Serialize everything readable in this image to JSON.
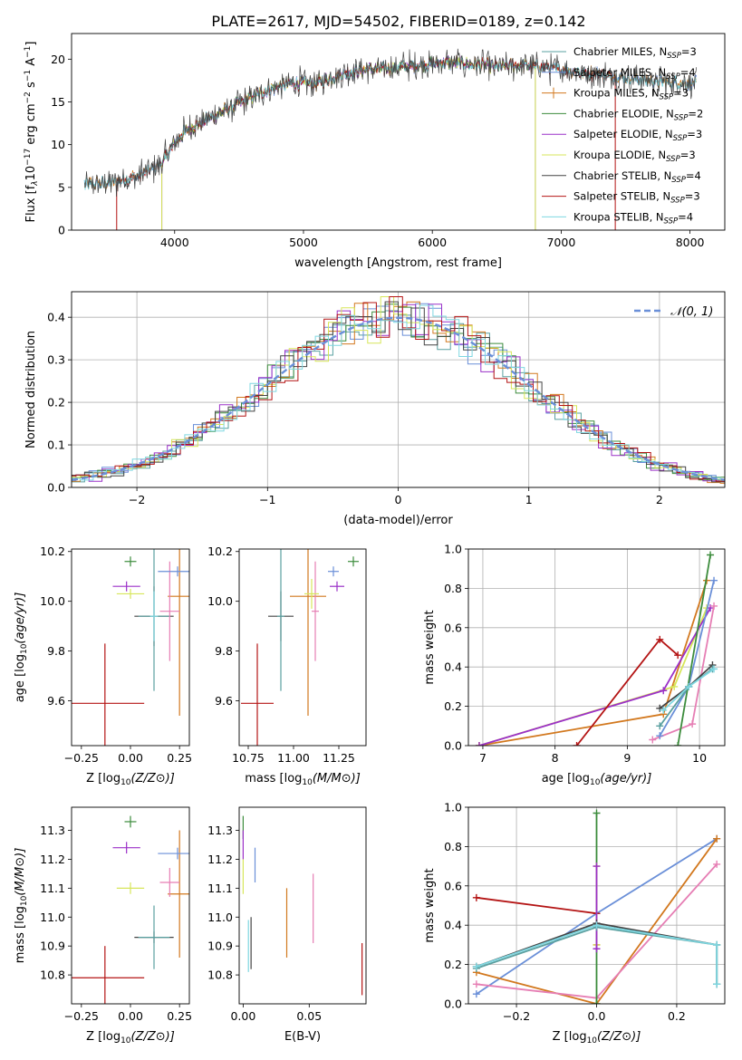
{
  "figure": {
    "title": "PLATE=2617, MJD=54502, FIBERID=0189, z=0.142"
  },
  "colors": {
    "Chabrier MILES": "#5aa0a0",
    "Salpeter MILES": "#6a8fd8",
    "Kroupa MILES": "#d2781e",
    "Chabrier ELODIE": "#3c8c3c",
    "Salpeter ELODIE": "#9b30c8",
    "Kroupa ELODIE": "#d7e65a",
    "Chabrier STELIB": "#444444",
    "Salpeter STELIB": "#b41414",
    "Kroupa STELIB": "#7ed7e1",
    "Kroupa STELIB pink": "#e67eb4",
    "normal": "#6a8fd8"
  },
  "chart_data": [
    {
      "id": "spectrum",
      "type": "line",
      "title": "PLATE=2617, MJD=54502, FIBERID=0189, z=0.142",
      "xlabel": "wavelength [Angstrom, rest frame]",
      "ylabel": "Flux [f_λ 10^-17 erg cm^-2 s^-1 A^-1]",
      "ylabel_parts": {
        "a": "Flux [f",
        "b": "λ",
        "c": "10",
        "d": "−17",
        "e": " erg cm",
        "f": "−2",
        "g": " s",
        "h": "−1",
        "i": " A",
        "j": "−1",
        "k": "]"
      },
      "xlim": [
        3200,
        8270
      ],
      "ylim": [
        0,
        23
      ],
      "xticks": [
        "4000",
        "5000",
        "6000",
        "7000",
        "8000"
      ],
      "yticks": [
        "0",
        "5",
        "10",
        "15",
        "20"
      ],
      "xtick_values": [
        4000,
        5000,
        6000,
        7000,
        8000
      ],
      "ytick_values": [
        0,
        5,
        10,
        15,
        20
      ],
      "legend_position": "top-right",
      "continuum": {
        "x": [
          3300,
          3500,
          3700,
          3900,
          4000,
          4100,
          4300,
          4500,
          4700,
          4900,
          5100,
          5300,
          5500,
          5700,
          5900,
          6100,
          6300,
          6500,
          6700,
          6900,
          7100,
          7300,
          7500,
          7700,
          7900,
          8000
        ],
        "y": [
          5.3,
          5.5,
          6.2,
          7.8,
          10.2,
          11.8,
          13.3,
          14.8,
          16.3,
          17.2,
          17.2,
          18.3,
          18.8,
          19.0,
          19.3,
          19.6,
          19.4,
          19.1,
          19.3,
          19.0,
          18.6,
          18.2,
          17.8,
          17.5,
          17.3,
          17.2
        ]
      },
      "series": [
        {
          "name": "Chabrier MILES, N_SSP=3",
          "label": "Chabrier MILES, N",
          "sub": "SSP",
          "suffix": "=3",
          "color": "#5aa0a0",
          "start": 3300,
          "end": 8050
        },
        {
          "name": "Salpeter MILES, N_SSP=4",
          "label": "Salpeter MILES, N",
          "sub": "SSP",
          "suffix": "=4",
          "color": "#6a8fd8",
          "start": 3300,
          "end": 8050
        },
        {
          "name": "Kroupa MILES, N_SSP=3",
          "label": "Kroupa MILES, N",
          "sub": "SSP",
          "suffix": "=3",
          "color": "#d2781e",
          "start": 3300,
          "end": 8050
        },
        {
          "name": "Chabrier ELODIE, N_SSP=2",
          "label": "Chabrier ELODIE, N",
          "sub": "SSP",
          "suffix": "=2",
          "color": "#3c8c3c",
          "start": 3900,
          "end": 6800
        },
        {
          "name": "Salpeter ELODIE, N_SSP=3",
          "label": "Salpeter ELODIE, N",
          "sub": "SSP",
          "suffix": "=3",
          "color": "#9b30c8",
          "start": 3900,
          "end": 6800
        },
        {
          "name": "Kroupa ELODIE, N_SSP=3",
          "label": "Kroupa ELODIE, N",
          "sub": "SSP",
          "suffix": "=3",
          "color": "#d7e65a",
          "start": 3900,
          "end": 6800
        },
        {
          "name": "Chabrier STELIB, N_SSP=4",
          "label": "Chabrier STELIB, N",
          "sub": "SSP",
          "suffix": "=4",
          "color": "#444444",
          "start": 3300,
          "end": 8050
        },
        {
          "name": "Salpeter STELIB, N_SSP=3",
          "label": "Salpeter STELIB, N",
          "sub": "SSP",
          "suffix": "=3",
          "color": "#b41414",
          "start": 3550,
          "end": 7420
        },
        {
          "name": "Kroupa STELIB, N_SSP=4",
          "label": "Kroupa STELIB, N",
          "sub": "SSP",
          "suffix": "=4",
          "color": "#7ed7e1",
          "start": 3300,
          "end": 8050
        }
      ]
    },
    {
      "id": "residuals",
      "type": "line",
      "xlabel": "(data-model)/error",
      "ylabel": "Normed distribution",
      "xlim": [
        -2.5,
        2.5
      ],
      "ylim": [
        0,
        0.46
      ],
      "xticks": [
        "−2",
        "−1",
        "0",
        "1",
        "2"
      ],
      "yticks": [
        "0.0",
        "0.1",
        "0.2",
        "0.3",
        "0.4"
      ],
      "xtick_values": [
        -2,
        -1,
        0,
        1,
        2
      ],
      "ytick_values": [
        0,
        0.1,
        0.2,
        0.3,
        0.4
      ],
      "grid": true,
      "legend_label": "𝒩(0, 1)",
      "legend_position": "top-right",
      "bin_width": 0.1,
      "hist_colors": [
        "#5aa0a0",
        "#6a8fd8",
        "#d2781e",
        "#3c8c3c",
        "#9b30c8",
        "#d7e65a",
        "#444444",
        "#b41414",
        "#7ed7e1"
      ]
    },
    {
      "id": "age_vs_Z",
      "type": "scatter",
      "xlabel": "Z [log10(Z/Z⊙)]",
      "ylabel": "age  [log10(age/yr)]",
      "xlim": [
        -0.3,
        0.3
      ],
      "ylim": [
        9.42,
        10.21
      ],
      "xticks": [
        "−0.25",
        "0.00",
        "0.25"
      ],
      "xtick_values": [
        -0.25,
        0,
        0.25
      ],
      "yticks": [
        "9.6",
        "9.8",
        "10.0",
        "10.2"
      ],
      "ytick_values": [
        9.6,
        9.8,
        10.0,
        10.2
      ],
      "points": [
        {
          "x": -0.13,
          "y": 9.59,
          "xerr": 0.2,
          "yerr": 0.24,
          "color": "#b41414"
        },
        {
          "x": 0.12,
          "y": 9.94,
          "xerr": 0.1,
          "yerr": 0.12,
          "color": "#444444"
        },
        {
          "x": 0.12,
          "y": 9.94,
          "xerr": 0.08,
          "yerr": 0.3,
          "color": "#5aa0a0"
        },
        {
          "x": 0.25,
          "y": 10.02,
          "xerr": 0.06,
          "yerr": 0.48,
          "color": "#d2781e"
        },
        {
          "x": 0.2,
          "y": 9.96,
          "xerr": 0.05,
          "yerr": 0.2,
          "color": "#e67eb4"
        },
        {
          "x": 0.0,
          "y": 10.16,
          "xerr": 0.03,
          "yerr": 0.02,
          "color": "#3c8c3c"
        },
        {
          "x": -0.02,
          "y": 10.06,
          "xerr": 0.07,
          "yerr": 0.02,
          "color": "#9b30c8"
        },
        {
          "x": 0.24,
          "y": 10.12,
          "xerr": 0.1,
          "yerr": 0.02,
          "color": "#6a8fd8"
        },
        {
          "x": 0.0,
          "y": 10.03,
          "xerr": 0.07,
          "yerr": 0.02,
          "color": "#d7e65a"
        },
        {
          "x": 0.12,
          "y": 9.94,
          "xerr": 0.02,
          "yerr": 0.1,
          "color": "#7ed7e1"
        }
      ]
    },
    {
      "id": "age_vs_mass",
      "type": "scatter",
      "xlabel": "mass [log10(M/M⊙)]",
      "xlim": [
        10.7,
        11.4
      ],
      "ylim": [
        9.42,
        10.21
      ],
      "xticks": [
        "10.75",
        "11.00",
        "11.25"
      ],
      "xtick_values": [
        10.75,
        11.0,
        11.25
      ],
      "yticks": [
        "9.6",
        "9.8",
        "10.0",
        "10.2"
      ],
      "ytick_values": [
        9.6,
        9.8,
        10.0,
        10.2
      ],
      "points": [
        {
          "x": 10.8,
          "y": 9.59,
          "xerr": 0.09,
          "yerr": 0.24,
          "color": "#b41414"
        },
        {
          "x": 10.93,
          "y": 9.94,
          "xerr": 0.07,
          "yerr": 0.1,
          "color": "#444444"
        },
        {
          "x": 10.93,
          "y": 9.94,
          "xerr": 0.02,
          "yerr": 0.3,
          "color": "#5aa0a0"
        },
        {
          "x": 11.08,
          "y": 10.02,
          "xerr": 0.1,
          "yerr": 0.48,
          "color": "#d2781e"
        },
        {
          "x": 11.12,
          "y": 9.96,
          "xerr": 0.02,
          "yerr": 0.2,
          "color": "#e67eb4"
        },
        {
          "x": 11.33,
          "y": 10.16,
          "xerr": 0.03,
          "yerr": 0.02,
          "color": "#3c8c3c"
        },
        {
          "x": 11.24,
          "y": 10.06,
          "xerr": 0.04,
          "yerr": 0.02,
          "color": "#9b30c8"
        },
        {
          "x": 11.22,
          "y": 10.12,
          "xerr": 0.03,
          "yerr": 0.02,
          "color": "#6a8fd8"
        },
        {
          "x": 11.1,
          "y": 10.03,
          "xerr": 0.04,
          "yerr": 0.06,
          "color": "#d7e65a"
        }
      ]
    },
    {
      "id": "massweight_vs_age",
      "type": "line",
      "xlabel": "age  [log10(age/yr)]",
      "ylabel": "mass weight",
      "xlim": [
        6.8,
        10.35
      ],
      "ylim": [
        0,
        1
      ],
      "xticks": [
        "7",
        "8",
        "9",
        "10"
      ],
      "xtick_values": [
        7,
        8,
        9,
        10
      ],
      "yticks": [
        "0.0",
        "0.2",
        "0.4",
        "0.6",
        "0.8",
        "1.0"
      ],
      "ytick_values": [
        0,
        0.2,
        0.4,
        0.6,
        0.8,
        1.0
      ],
      "grid": true,
      "series": [
        {
          "color": "#d2781e",
          "x": [
            6.95,
            9.5,
            10.1
          ],
          "y": [
            0.0,
            0.16,
            0.84
          ]
        },
        {
          "color": "#d7e65a",
          "x": [
            6.95,
            9.65,
            10.1
          ],
          "y": [
            0.0,
            0.3,
            0.7
          ]
        },
        {
          "color": "#9b30c8",
          "x": [
            6.95,
            9.5,
            10.15
          ],
          "y": [
            0.0,
            0.28,
            0.7
          ]
        },
        {
          "color": "#b41414",
          "x": [
            8.3,
            9.45,
            9.7
          ],
          "y": [
            0.0,
            0.54,
            0.46
          ]
        },
        {
          "color": "#e67eb4",
          "x": [
            9.35,
            9.9,
            10.2
          ],
          "y": [
            0.03,
            0.11,
            0.71
          ]
        },
        {
          "color": "#6a8fd8",
          "x": [
            9.45,
            9.85,
            10.2
          ],
          "y": [
            0.05,
            0.3,
            0.84
          ]
        },
        {
          "color": "#3c8c3c",
          "x": [
            9.7,
            10.15
          ],
          "y": [
            0.0,
            0.97
          ]
        },
        {
          "color": "#444444",
          "x": [
            9.45,
            9.85,
            10.18
          ],
          "y": [
            0.19,
            0.3,
            0.41
          ]
        },
        {
          "color": "#5aa0a0",
          "x": [
            9.45,
            9.85,
            10.18
          ],
          "y": [
            0.1,
            0.3,
            0.39
          ]
        },
        {
          "color": "#7ed7e1",
          "x": [
            9.5,
            9.85,
            10.2
          ],
          "y": [
            0.18,
            0.3,
            0.39
          ]
        }
      ]
    },
    {
      "id": "mass_vs_Z",
      "type": "scatter",
      "xlabel": "Z [log10(Z/Z⊙)]",
      "ylabel": "mass [log10(M/M⊙)]",
      "xlim": [
        -0.3,
        0.3
      ],
      "ylim": [
        10.7,
        11.38
      ],
      "xticks": [
        "−0.25",
        "0.00",
        "0.25"
      ],
      "xtick_values": [
        -0.25,
        0,
        0.25
      ],
      "yticks": [
        "10.8",
        "10.9",
        "11.0",
        "11.1",
        "11.2",
        "11.3"
      ],
      "ytick_values": [
        10.8,
        10.9,
        11.0,
        11.1,
        11.2,
        11.3
      ],
      "points": [
        {
          "x": -0.13,
          "y": 10.79,
          "xerr": 0.2,
          "yerr": 0.11,
          "color": "#b41414"
        },
        {
          "x": 0.12,
          "y": 10.93,
          "xerr": 0.1,
          "yerr": 0.02,
          "color": "#444444"
        },
        {
          "x": 0.12,
          "y": 10.93,
          "xerr": 0.08,
          "yerr": 0.11,
          "color": "#5aa0a0"
        },
        {
          "x": 0.25,
          "y": 11.08,
          "xerr": 0.06,
          "yerr": 0.22,
          "color": "#d2781e"
        },
        {
          "x": 0.2,
          "y": 11.12,
          "xerr": 0.05,
          "yerr": 0.05,
          "color": "#e67eb4"
        },
        {
          "x": 0.0,
          "y": 11.33,
          "xerr": 0.03,
          "yerr": 0.02,
          "color": "#3c8c3c"
        },
        {
          "x": -0.02,
          "y": 11.24,
          "xerr": 0.07,
          "yerr": 0.02,
          "color": "#9b30c8"
        },
        {
          "x": 0.24,
          "y": 11.22,
          "xerr": 0.1,
          "yerr": 0.02,
          "color": "#6a8fd8"
        },
        {
          "x": 0.0,
          "y": 11.1,
          "xerr": 0.07,
          "yerr": 0.02,
          "color": "#d7e65a"
        }
      ]
    },
    {
      "id": "mass_vs_ebv",
      "type": "scatter",
      "xlabel": "E(B-V)",
      "xlim": [
        -0.003,
        0.093
      ],
      "ylim": [
        10.7,
        11.38
      ],
      "xticks": [
        "0.00",
        "0.05"
      ],
      "xtick_values": [
        0,
        0.05
      ],
      "yticks": [
        "10.8",
        "10.9",
        "11.0",
        "11.1",
        "11.2",
        "11.3"
      ],
      "ytick_values": [
        10.8,
        10.9,
        11.0,
        11.1,
        11.2,
        11.3
      ],
      "points": [
        {
          "x": 0.0,
          "y": 11.31,
          "yerr": 0.04,
          "color": "#3c8c3c"
        },
        {
          "x": 0.0,
          "y": 11.25,
          "yerr": 0.05,
          "color": "#9b30c8"
        },
        {
          "x": 0.0,
          "y": 11.14,
          "yerr": 0.06,
          "color": "#d7e65a"
        },
        {
          "x": 0.009,
          "y": 11.18,
          "yerr": 0.06,
          "color": "#6a8fd8"
        },
        {
          "x": 0.006,
          "y": 10.91,
          "yerr": 0.09,
          "color": "#444444"
        },
        {
          "x": 0.004,
          "y": 10.9,
          "yerr": 0.09,
          "color": "#7ed7e1"
        },
        {
          "x": 0.033,
          "y": 10.98,
          "yerr": 0.12,
          "color": "#d2781e"
        },
        {
          "x": 0.053,
          "y": 11.03,
          "yerr": 0.12,
          "color": "#e67eb4"
        },
        {
          "x": 0.09,
          "y": 10.82,
          "yerr": 0.09,
          "color": "#b41414"
        }
      ]
    },
    {
      "id": "massweight_vs_Z",
      "type": "line",
      "xlabel": "Z [log10(Z/Z⊙)]",
      "ylabel": "mass weight",
      "xlim": [
        -0.32,
        0.32
      ],
      "ylim": [
        0,
        1
      ],
      "xticks": [
        "−0.2",
        "0.0",
        "0.2"
      ],
      "xtick_values": [
        -0.2,
        0,
        0.2
      ],
      "yticks": [
        "0.0",
        "0.2",
        "0.4",
        "0.6",
        "0.8",
        "1.0"
      ],
      "ytick_values": [
        0,
        0.2,
        0.4,
        0.6,
        0.8,
        1.0
      ],
      "grid": true,
      "series": [
        {
          "color": "#6a8fd8",
          "x": [
            -0.3,
            0.0,
            0.3
          ],
          "y": [
            0.05,
            0.46,
            0.84
          ]
        },
        {
          "color": "#d2781e",
          "x": [
            -0.3,
            0.0,
            0.3
          ],
          "y": [
            0.16,
            0.0,
            0.84
          ]
        },
        {
          "color": "#e67eb4",
          "x": [
            -0.3,
            0.0,
            0.3
          ],
          "y": [
            0.1,
            0.03,
            0.71
          ]
        },
        {
          "color": "#b41414",
          "x": [
            -0.3,
            0.0,
            0.0
          ],
          "y": [
            0.54,
            0.46,
            0.3
          ]
        },
        {
          "color": "#3c8c3c",
          "x": [
            0.0,
            0.0
          ],
          "y": [
            0.97,
            0.0
          ]
        },
        {
          "color": "#d7e65a",
          "x": [
            0.0,
            0.0
          ],
          "y": [
            0.7,
            0.3
          ]
        },
        {
          "color": "#9b30c8",
          "x": [
            0.0,
            0.0
          ],
          "y": [
            0.7,
            0.28
          ]
        },
        {
          "color": "#444444",
          "x": [
            -0.3,
            0.0,
            0.3,
            0.3
          ],
          "y": [
            0.19,
            0.41,
            0.3,
            0.1
          ]
        },
        {
          "color": "#5aa0a0",
          "x": [
            -0.3,
            0.0,
            0.3,
            0.3
          ],
          "y": [
            0.18,
            0.39,
            0.3,
            0.1
          ]
        },
        {
          "color": "#7ed7e1",
          "x": [
            -0.3,
            0.0,
            0.3,
            0.3
          ],
          "y": [
            0.19,
            0.4,
            0.3,
            0.1
          ]
        }
      ]
    }
  ]
}
